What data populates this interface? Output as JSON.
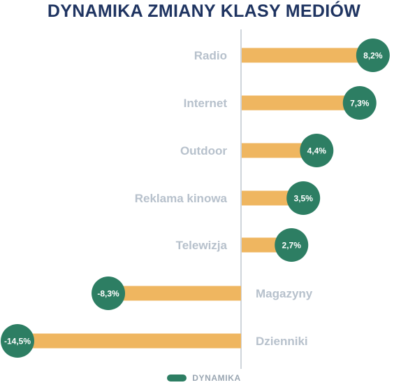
{
  "title": "DYNAMIKA ZMIANY KLASY MEDIÓW",
  "colors": {
    "bar": "#efb660",
    "bubble": "#2d7e63",
    "axis": "#cfd5db",
    "label": "#b7c1cc",
    "title": "#1f3461"
  },
  "legend": {
    "label": "DYNAMIKA"
  },
  "chart_data": {
    "type": "bar",
    "orientation": "horizontal",
    "categories": [
      "Radio",
      "Internet",
      "Outdoor",
      "Reklama kinowa",
      "Telewizja",
      "Magazyny",
      "Dzienniki"
    ],
    "series": [
      {
        "name": "DYNAMIKA",
        "values": [
          8.2,
          7.3,
          4.4,
          3.5,
          2.7,
          -8.3,
          -14.5
        ],
        "labels": [
          "8,2%",
          "7,3%",
          "4,4%",
          "3,5%",
          "2,7%",
          "-8,3%",
          "-14,5%"
        ]
      }
    ],
    "legend_position": "bottom",
    "grid": false
  }
}
